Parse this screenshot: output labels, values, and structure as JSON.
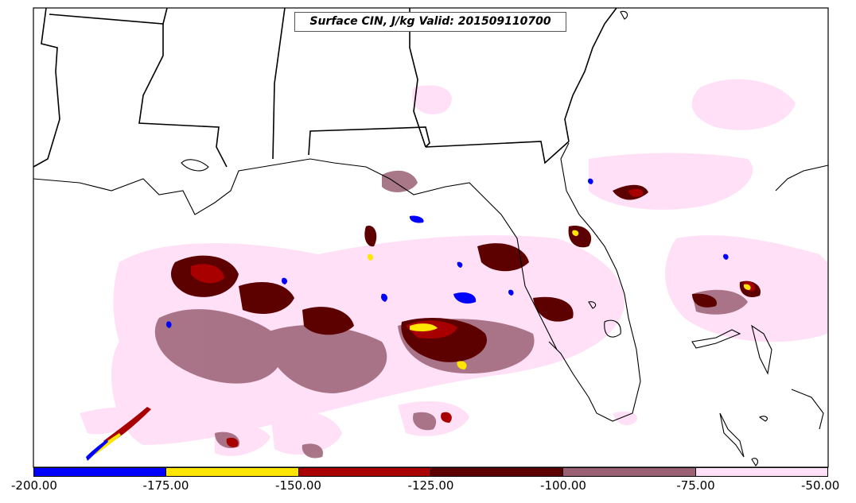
{
  "title": "Surface CIN, J/kg Valid: 201509110700",
  "colorbar": {
    "segments": [
      {
        "from": -200,
        "to": -175,
        "color": "#0000ff"
      },
      {
        "from": -175,
        "to": -150,
        "color": "#ffe600"
      },
      {
        "from": -150,
        "to": -125,
        "color": "#a80000"
      },
      {
        "from": -125,
        "to": -100,
        "color": "#5c0000"
      },
      {
        "from": -100,
        "to": -75,
        "color": "#9a6073"
      },
      {
        "from": -75,
        "to": -50,
        "color": "#ffe0f6"
      }
    ],
    "ticks": [
      "-200.00",
      "-175.00",
      "-150.00",
      "-125.00",
      "-100.00",
      "-75.00",
      "-50.00"
    ]
  },
  "colors": {
    "coastline": "#000000",
    "background": "#ffffff"
  }
}
